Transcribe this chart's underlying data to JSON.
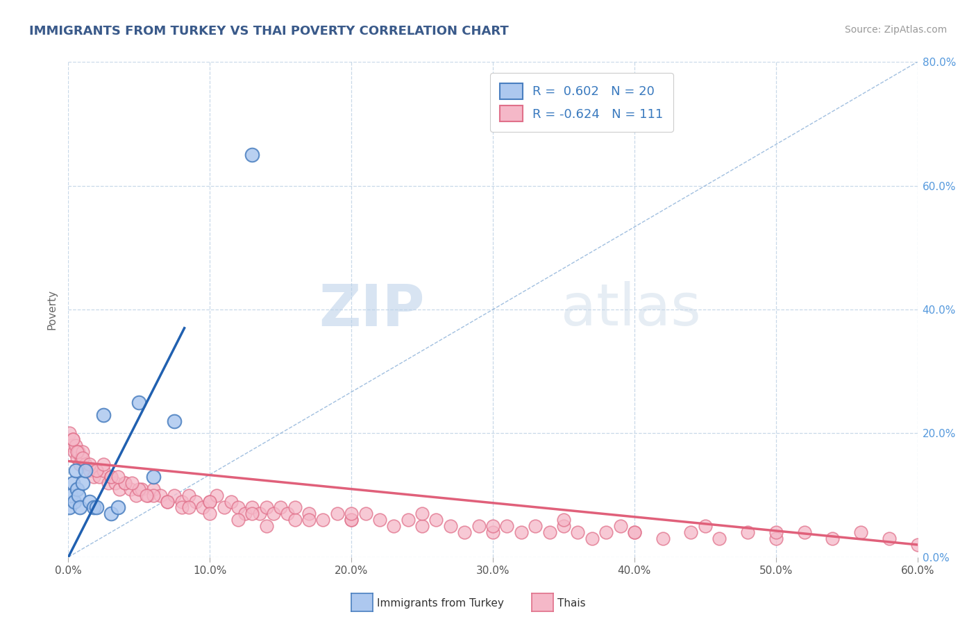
{
  "title": "IMMIGRANTS FROM TURKEY VS THAI POVERTY CORRELATION CHART",
  "source_text": "Source: ZipAtlas.com",
  "ylabel": "Poverty",
  "watermark_zip": "ZIP",
  "watermark_atlas": "atlas",
  "legend_label_1": "Immigrants from Turkey",
  "legend_label_2": "Thais",
  "R1": 0.602,
  "N1": 20,
  "R2": -0.624,
  "N2": 111,
  "xlim": [
    0.0,
    0.6
  ],
  "ylim": [
    0.0,
    0.8
  ],
  "xticks": [
    0.0,
    0.1,
    0.2,
    0.3,
    0.4,
    0.5,
    0.6
  ],
  "yticks": [
    0.0,
    0.2,
    0.4,
    0.6,
    0.8
  ],
  "color_blue_fill": "#adc8ef",
  "color_blue_edge": "#4a7fc0",
  "color_pink_fill": "#f5b8c8",
  "color_pink_edge": "#e0708a",
  "color_blue_line": "#2060b0",
  "color_pink_line": "#e0607a",
  "color_dashed": "#8ab0d8",
  "background_color": "#ffffff",
  "grid_color": "#c8d8e8",
  "title_color": "#3a5a8a",
  "source_color": "#999999",
  "scatter_blue_x": [
    0.001,
    0.002,
    0.003,
    0.004,
    0.005,
    0.006,
    0.007,
    0.008,
    0.01,
    0.012,
    0.015,
    0.018,
    0.02,
    0.025,
    0.03,
    0.035,
    0.05,
    0.06,
    0.075,
    0.13
  ],
  "scatter_blue_y": [
    0.08,
    0.1,
    0.12,
    0.09,
    0.14,
    0.11,
    0.1,
    0.08,
    0.12,
    0.14,
    0.09,
    0.08,
    0.08,
    0.23,
    0.07,
    0.08,
    0.25,
    0.13,
    0.22,
    0.65
  ],
  "scatter_pink_x": [
    0.001,
    0.002,
    0.003,
    0.004,
    0.005,
    0.006,
    0.007,
    0.008,
    0.009,
    0.01,
    0.012,
    0.015,
    0.018,
    0.02,
    0.022,
    0.025,
    0.028,
    0.03,
    0.033,
    0.036,
    0.04,
    0.044,
    0.048,
    0.052,
    0.056,
    0.06,
    0.065,
    0.07,
    0.075,
    0.08,
    0.085,
    0.09,
    0.095,
    0.1,
    0.105,
    0.11,
    0.115,
    0.12,
    0.125,
    0.13,
    0.135,
    0.14,
    0.145,
    0.15,
    0.155,
    0.16,
    0.17,
    0.18,
    0.19,
    0.2,
    0.21,
    0.22,
    0.23,
    0.24,
    0.25,
    0.26,
    0.27,
    0.28,
    0.29,
    0.3,
    0.31,
    0.32,
    0.33,
    0.34,
    0.35,
    0.36,
    0.37,
    0.38,
    0.39,
    0.4,
    0.42,
    0.44,
    0.46,
    0.48,
    0.5,
    0.52,
    0.54,
    0.56,
    0.58,
    0.6,
    0.003,
    0.006,
    0.01,
    0.015,
    0.02,
    0.03,
    0.04,
    0.05,
    0.06,
    0.08,
    0.1,
    0.13,
    0.16,
    0.2,
    0.25,
    0.3,
    0.35,
    0.4,
    0.45,
    0.5,
    0.025,
    0.035,
    0.045,
    0.055,
    0.07,
    0.085,
    0.1,
    0.12,
    0.14,
    0.17,
    0.2
  ],
  "scatter_pink_y": [
    0.2,
    0.18,
    0.19,
    0.17,
    0.18,
    0.16,
    0.17,
    0.15,
    0.16,
    0.17,
    0.15,
    0.14,
    0.13,
    0.14,
    0.13,
    0.14,
    0.12,
    0.13,
    0.12,
    0.11,
    0.12,
    0.11,
    0.1,
    0.11,
    0.1,
    0.11,
    0.1,
    0.09,
    0.1,
    0.09,
    0.1,
    0.09,
    0.08,
    0.09,
    0.1,
    0.08,
    0.09,
    0.08,
    0.07,
    0.08,
    0.07,
    0.08,
    0.07,
    0.08,
    0.07,
    0.06,
    0.07,
    0.06,
    0.07,
    0.06,
    0.07,
    0.06,
    0.05,
    0.06,
    0.05,
    0.06,
    0.05,
    0.04,
    0.05,
    0.04,
    0.05,
    0.04,
    0.05,
    0.04,
    0.05,
    0.04,
    0.03,
    0.04,
    0.05,
    0.04,
    0.03,
    0.04,
    0.03,
    0.04,
    0.03,
    0.04,
    0.03,
    0.04,
    0.03,
    0.02,
    0.19,
    0.17,
    0.16,
    0.15,
    0.14,
    0.13,
    0.12,
    0.11,
    0.1,
    0.08,
    0.09,
    0.07,
    0.08,
    0.06,
    0.07,
    0.05,
    0.06,
    0.04,
    0.05,
    0.04,
    0.15,
    0.13,
    0.12,
    0.1,
    0.09,
    0.08,
    0.07,
    0.06,
    0.05,
    0.06,
    0.07
  ],
  "blue_trend_x": [
    0.0,
    0.082
  ],
  "blue_trend_y": [
    0.0,
    0.37
  ],
  "pink_trend_x": [
    0.0,
    0.6
  ],
  "pink_trend_y": [
    0.155,
    0.02
  ]
}
